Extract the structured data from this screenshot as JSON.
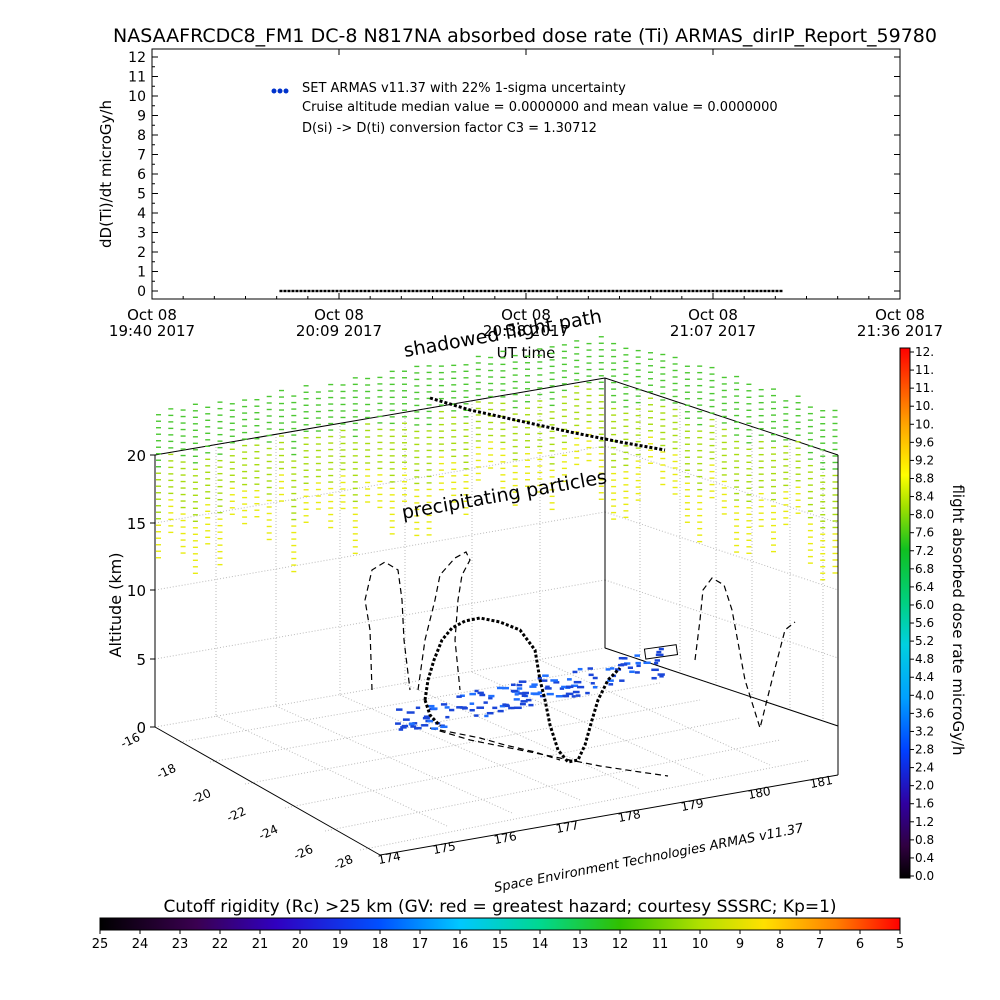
{
  "title": "NASAAFRCDC8_FM1  DC-8   N817NA absorbed dose rate (Ti) ARMAS_dirIP_Report_59780",
  "chart_data": [
    {
      "type": "scatter",
      "title": "NASAAFRCDC8_FM1  DC-8   N817NA absorbed dose rate (Ti) ARMAS_dirIP_Report_59780",
      "ylabel": "dD(Ti)/dt microGy/h",
      "xlabel": "UT time",
      "ylim": [
        0,
        12
      ],
      "yticks": [
        "0",
        "1",
        "2",
        "3",
        "4",
        "5",
        "6",
        "7",
        "8",
        "9",
        "10",
        "11",
        "12"
      ],
      "xticks": [
        {
          "line1": "Oct 08",
          "line2": "19:40 2017"
        },
        {
          "line1": "Oct 08",
          "line2": "20:09 2017"
        },
        {
          "line1": "Oct 08",
          "line2": "20:38 2017"
        },
        {
          "line1": "Oct 08",
          "line2": "21:07 2017"
        },
        {
          "line1": "Oct 08",
          "line2": "21:36 2017"
        }
      ],
      "x_start_minute": 0,
      "x_end_minute": 116,
      "series": [
        {
          "name": "SET ARMAS v11.37 with 22% 1-sigma uncertainty",
          "color": "#0033cc",
          "x_minute_from": 20,
          "x_minute_to": 98,
          "y": 0
        }
      ],
      "notes": [
        "Cruise altitude median value = 0.0000000 and mean value = 0.0000000",
        "D(si) -> D(ti) conversion factor C3 = 1.30712"
      ],
      "grid": false
    },
    {
      "type": "scatter",
      "projection": "3d",
      "zlabel": "Altitude (km)",
      "zticks": [
        "0",
        "5",
        "10",
        "15",
        "20"
      ],
      "xticks_lon": [
        "174",
        "175",
        "176",
        "177",
        "178",
        "179",
        "180",
        "181"
      ],
      "yticks_lat": [
        "-16",
        "-18",
        "-20",
        "-22",
        "-24",
        "-26",
        "-28"
      ],
      "annotations": [
        "shadowed flight path",
        "precipitating particles"
      ],
      "footer": "Space Environment Technologies ARMAS v11.37",
      "colorbar": {
        "label": "flight absorbed dose rate microGy/h",
        "ticks": [
          "0.0",
          "0.4",
          "0.8",
          "1.2",
          "1.6",
          "2.0",
          "2.4",
          "2.8",
          "3.2",
          "3.6",
          "4.0",
          "4.4",
          "4.8",
          "5.2",
          "5.6",
          "6.0",
          "6.4",
          "6.8",
          "7.2",
          "7.6",
          "8.0",
          "8.4",
          "8.8",
          "9.2",
          "9.6",
          "10.",
          "10.",
          "11.",
          "11.",
          "12."
        ]
      },
      "grid": true
    },
    {
      "type": "heatmap",
      "title": "Cutoff rigidity (Rc) >25 km (GV: red = greatest hazard; courtesy SSSRC; Kp=1)",
      "ticks": [
        "25",
        "24",
        "23",
        "22",
        "21",
        "20",
        "19",
        "18",
        "17",
        "16",
        "15",
        "14",
        "13",
        "12",
        "11",
        "10",
        "9",
        "8",
        "7",
        "6",
        "5"
      ]
    }
  ]
}
